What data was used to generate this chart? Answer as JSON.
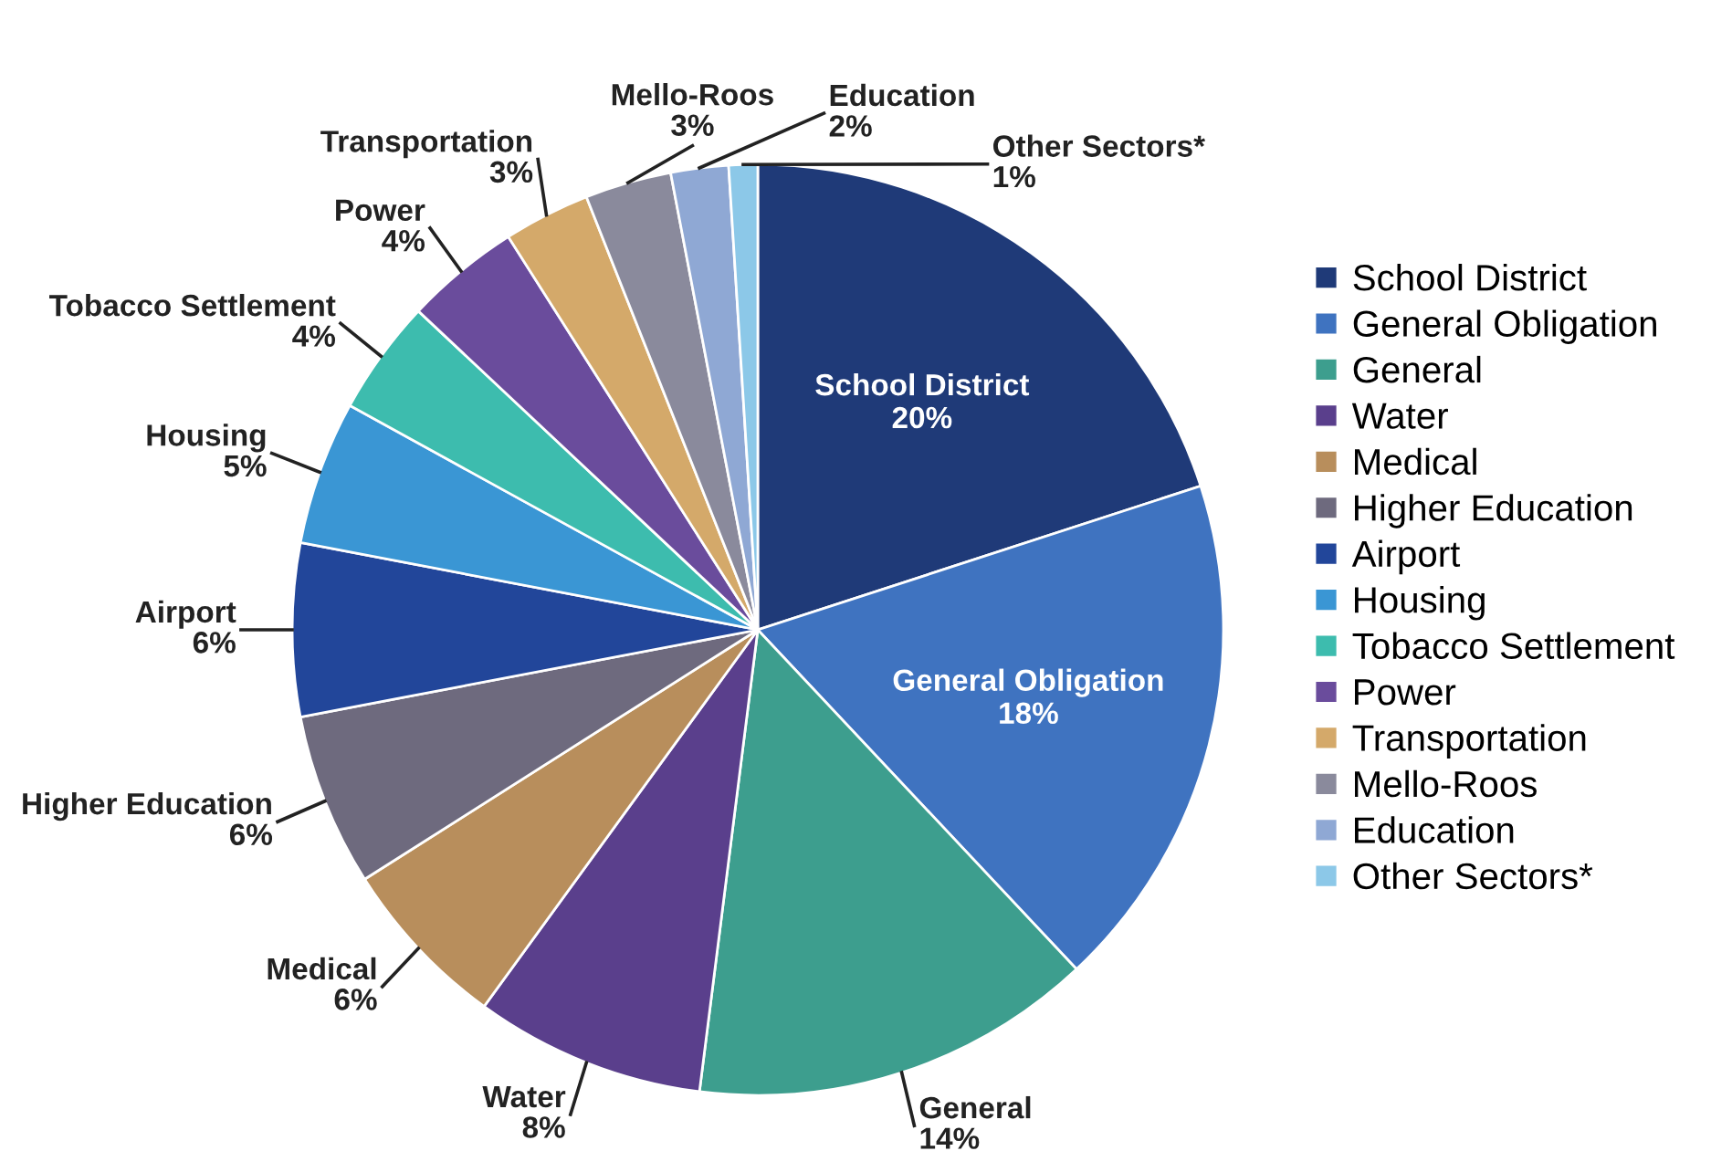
{
  "chart_data": {
    "type": "pie",
    "categories": [
      "School District",
      "General Obligation",
      "General",
      "Water",
      "Medical",
      "Higher Education",
      "Airport",
      "Housing",
      "Tobacco Settlement",
      "Power",
      "Transportation",
      "Mello-Roos",
      "Education",
      "Other Sectors*"
    ],
    "values": [
      20,
      18,
      14,
      8,
      6,
      6,
      6,
      5,
      4,
      4,
      3,
      3,
      2,
      1
    ],
    "value_labels": [
      "20%",
      "18%",
      "14%",
      "8%",
      "6%",
      "6%",
      "6%",
      "5%",
      "4%",
      "4%",
      "3%",
      "3%",
      "2%",
      "1%"
    ],
    "colors": [
      "#1f3a78",
      "#3f73c0",
      "#3d9e8e",
      "#5a3f8c",
      "#b88e5c",
      "#6e6a7e",
      "#22469a",
      "#3a96d4",
      "#3dbcae",
      "#6a4c9c",
      "#d4a96a",
      "#8a8a9c",
      "#8fa8d4",
      "#8cc8e8"
    ],
    "legend": "right"
  }
}
